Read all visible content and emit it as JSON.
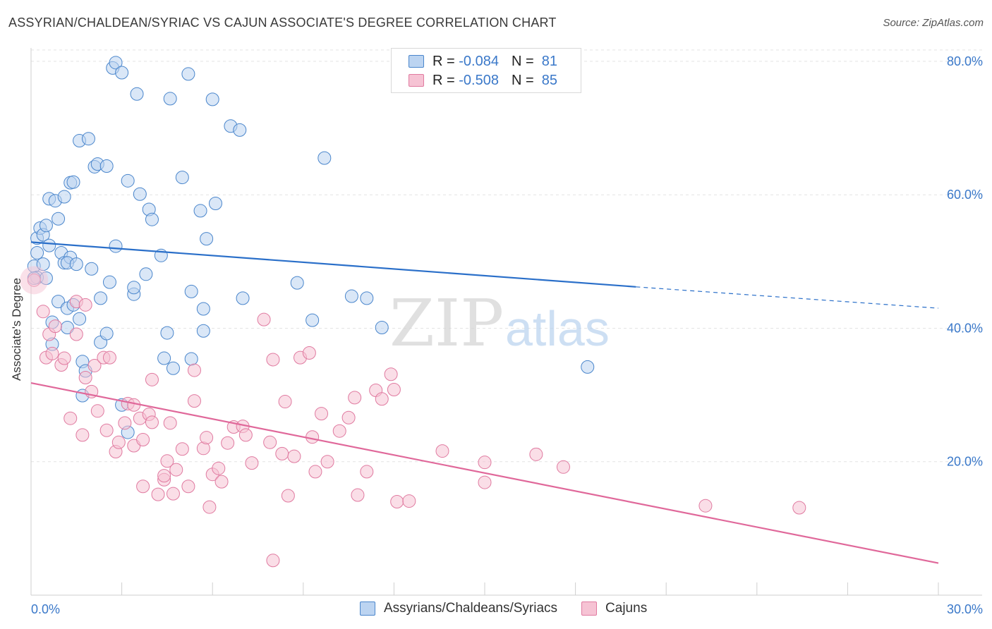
{
  "header": {
    "title": "ASSYRIAN/CHALDEAN/SYRIAC VS CAJUN ASSOCIATE'S DEGREE CORRELATION CHART",
    "source": "Source: ZipAtlas.com"
  },
  "watermark": {
    "zip": "ZIP",
    "atlas": "atlas"
  },
  "colors": {
    "blue": "#4a86cc",
    "blue_fill": "#bcd4f1",
    "pink": "#e07aa0",
    "pink_fill": "#f6c3d4",
    "blue_line": "#2a6fc9",
    "pink_line": "#e0689a",
    "grid": "#e3e3e3",
    "tick_text": "#3a78c9"
  },
  "legend": {
    "rows": [
      {
        "r_label": "R =",
        "r_value": "-0.084",
        "n_label": "N =",
        "n_value": "81"
      },
      {
        "r_label": "R =",
        "r_value": "-0.508",
        "n_label": "N =",
        "n_value": "85"
      }
    ]
  },
  "bottom_legend": {
    "series1": "Assyrians/Chaldeans/Syriacs",
    "series2": "Cajuns"
  },
  "chart_data": {
    "type": "scatter",
    "ylabel": "Associate's Degree",
    "xlim": [
      0,
      30
    ],
    "ylim": [
      0,
      82
    ],
    "x_ticks": [
      0,
      30
    ],
    "x_tick_labels": [
      "0.0%",
      "30.0%"
    ],
    "y_ticks": [
      20,
      40,
      60,
      80
    ],
    "y_tick_labels": [
      "20.0%",
      "40.0%",
      "60.0%",
      "80.0%"
    ],
    "series": [
      {
        "name": "Assyrians/Chaldeans/Syriacs",
        "r": -0.084,
        "n": 81,
        "trend": {
          "x1": 0,
          "y1": 52.9,
          "x2": 20,
          "y2": 46.2,
          "dash_to_x": 30,
          "dash_to_y": 43.0
        },
        "points": [
          [
            0.1,
            49.3
          ],
          [
            0.2,
            53.5
          ],
          [
            0.2,
            51.3
          ],
          [
            0.2,
            47.6
          ],
          [
            0.3,
            55.0
          ],
          [
            0.4,
            54.0
          ],
          [
            0.4,
            49.6
          ],
          [
            0.5,
            47.5
          ],
          [
            0.5,
            55.4
          ],
          [
            0.6,
            59.4
          ],
          [
            0.6,
            52.4
          ],
          [
            0.7,
            40.9
          ],
          [
            0.7,
            37.6
          ],
          [
            0.8,
            59.1
          ],
          [
            0.9,
            56.4
          ],
          [
            0.9,
            44.0
          ],
          [
            1.0,
            51.3
          ],
          [
            1.1,
            59.7
          ],
          [
            1.1,
            49.8
          ],
          [
            1.2,
            43.0
          ],
          [
            1.2,
            40.1
          ],
          [
            1.3,
            50.6
          ],
          [
            1.2,
            49.8
          ],
          [
            1.4,
            43.5
          ],
          [
            1.5,
            49.6
          ],
          [
            1.3,
            61.8
          ],
          [
            1.4,
            61.9
          ],
          [
            1.6,
            41.4
          ],
          [
            1.7,
            35.0
          ],
          [
            1.6,
            68.1
          ],
          [
            1.8,
            33.6
          ],
          [
            1.9,
            68.4
          ],
          [
            1.7,
            29.9
          ],
          [
            2.0,
            48.9
          ],
          [
            2.1,
            64.2
          ],
          [
            2.2,
            64.6
          ],
          [
            2.3,
            44.5
          ],
          [
            2.3,
            37.9
          ],
          [
            2.5,
            64.3
          ],
          [
            2.5,
            39.2
          ],
          [
            2.6,
            46.9
          ],
          [
            2.7,
            79.0
          ],
          [
            2.8,
            52.3
          ],
          [
            2.8,
            79.8
          ],
          [
            3.0,
            28.5
          ],
          [
            3.0,
            78.3
          ],
          [
            3.2,
            62.1
          ],
          [
            3.2,
            24.4
          ],
          [
            3.4,
            45.1
          ],
          [
            3.4,
            46.1
          ],
          [
            3.5,
            75.1
          ],
          [
            3.6,
            60.1
          ],
          [
            3.8,
            48.1
          ],
          [
            3.9,
            57.8
          ],
          [
            4.0,
            56.3
          ],
          [
            4.3,
            50.9
          ],
          [
            4.4,
            35.5
          ],
          [
            4.5,
            39.3
          ],
          [
            4.6,
            74.4
          ],
          [
            4.7,
            34.0
          ],
          [
            5.0,
            62.6
          ],
          [
            5.2,
            78.1
          ],
          [
            5.3,
            45.5
          ],
          [
            5.3,
            35.4
          ],
          [
            5.6,
            57.6
          ],
          [
            5.7,
            42.9
          ],
          [
            5.7,
            39.6
          ],
          [
            5.8,
            53.4
          ],
          [
            6.0,
            74.3
          ],
          [
            6.1,
            58.7
          ],
          [
            6.6,
            70.3
          ],
          [
            6.9,
            69.7
          ],
          [
            7.0,
            44.5
          ],
          [
            8.8,
            46.8
          ],
          [
            9.3,
            41.2
          ],
          [
            9.7,
            65.5
          ],
          [
            10.6,
            44.8
          ],
          [
            11.1,
            44.5
          ],
          [
            11.6,
            40.1
          ],
          [
            18.4,
            34.2
          ],
          [
            0.1,
            47.5
          ]
        ]
      },
      {
        "name": "Cajuns",
        "r": -0.508,
        "n": 85,
        "trend": {
          "x1": 0,
          "y1": 31.8,
          "x2": 30,
          "y2": 4.8
        },
        "points": [
          [
            0.1,
            47.2
          ],
          [
            0.4,
            42.5
          ],
          [
            0.5,
            35.6
          ],
          [
            0.6,
            39.1
          ],
          [
            0.7,
            36.2
          ],
          [
            0.8,
            40.3
          ],
          [
            1.0,
            34.5
          ],
          [
            1.1,
            35.5
          ],
          [
            1.3,
            26.5
          ],
          [
            1.5,
            44.0
          ],
          [
            1.5,
            39.1
          ],
          [
            1.7,
            24.0
          ],
          [
            1.8,
            43.5
          ],
          [
            1.8,
            32.6
          ],
          [
            2.0,
            30.5
          ],
          [
            2.1,
            34.4
          ],
          [
            2.2,
            27.6
          ],
          [
            2.4,
            35.6
          ],
          [
            2.5,
            24.7
          ],
          [
            2.6,
            35.6
          ],
          [
            2.8,
            21.5
          ],
          [
            2.9,
            22.9
          ],
          [
            3.1,
            25.8
          ],
          [
            3.2,
            28.7
          ],
          [
            3.4,
            28.5
          ],
          [
            3.4,
            22.4
          ],
          [
            3.6,
            26.5
          ],
          [
            3.7,
            16.3
          ],
          [
            3.7,
            23.3
          ],
          [
            3.9,
            27.1
          ],
          [
            4.0,
            32.3
          ],
          [
            4.0,
            25.9
          ],
          [
            4.2,
            15.1
          ],
          [
            4.4,
            17.3
          ],
          [
            4.4,
            17.9
          ],
          [
            4.5,
            20.1
          ],
          [
            4.6,
            25.8
          ],
          [
            4.7,
            15.2
          ],
          [
            4.8,
            18.8
          ],
          [
            5.0,
            21.9
          ],
          [
            5.2,
            16.3
          ],
          [
            5.4,
            33.7
          ],
          [
            5.4,
            29.1
          ],
          [
            5.7,
            22.0
          ],
          [
            5.8,
            23.6
          ],
          [
            5.9,
            13.2
          ],
          [
            6.0,
            18.1
          ],
          [
            6.2,
            19.0
          ],
          [
            6.3,
            17.0
          ],
          [
            6.5,
            22.8
          ],
          [
            6.7,
            25.2
          ],
          [
            7.0,
            25.3
          ],
          [
            7.1,
            24.0
          ],
          [
            7.3,
            19.8
          ],
          [
            7.7,
            41.3
          ],
          [
            7.9,
            22.9
          ],
          [
            8.0,
            35.3
          ],
          [
            8.0,
            5.2
          ],
          [
            8.3,
            21.2
          ],
          [
            8.4,
            29.0
          ],
          [
            8.5,
            14.9
          ],
          [
            8.7,
            20.8
          ],
          [
            8.9,
            35.6
          ],
          [
            9.2,
            36.3
          ],
          [
            9.3,
            23.7
          ],
          [
            9.4,
            18.5
          ],
          [
            9.6,
            27.2
          ],
          [
            9.8,
            20.0
          ],
          [
            10.2,
            24.6
          ],
          [
            10.5,
            26.6
          ],
          [
            10.7,
            29.6
          ],
          [
            10.8,
            15.0
          ],
          [
            11.1,
            18.5
          ],
          [
            11.4,
            30.7
          ],
          [
            11.6,
            29.4
          ],
          [
            11.9,
            33.1
          ],
          [
            12.0,
            30.8
          ],
          [
            12.1,
            14.0
          ],
          [
            12.5,
            14.1
          ],
          [
            13.6,
            21.6
          ],
          [
            15.0,
            19.9
          ],
          [
            15.0,
            16.9
          ],
          [
            16.7,
            21.1
          ],
          [
            17.6,
            19.2
          ],
          [
            22.3,
            13.4
          ]
        ],
        "extra_point": [
          25.4,
          13.1
        ]
      }
    ]
  }
}
